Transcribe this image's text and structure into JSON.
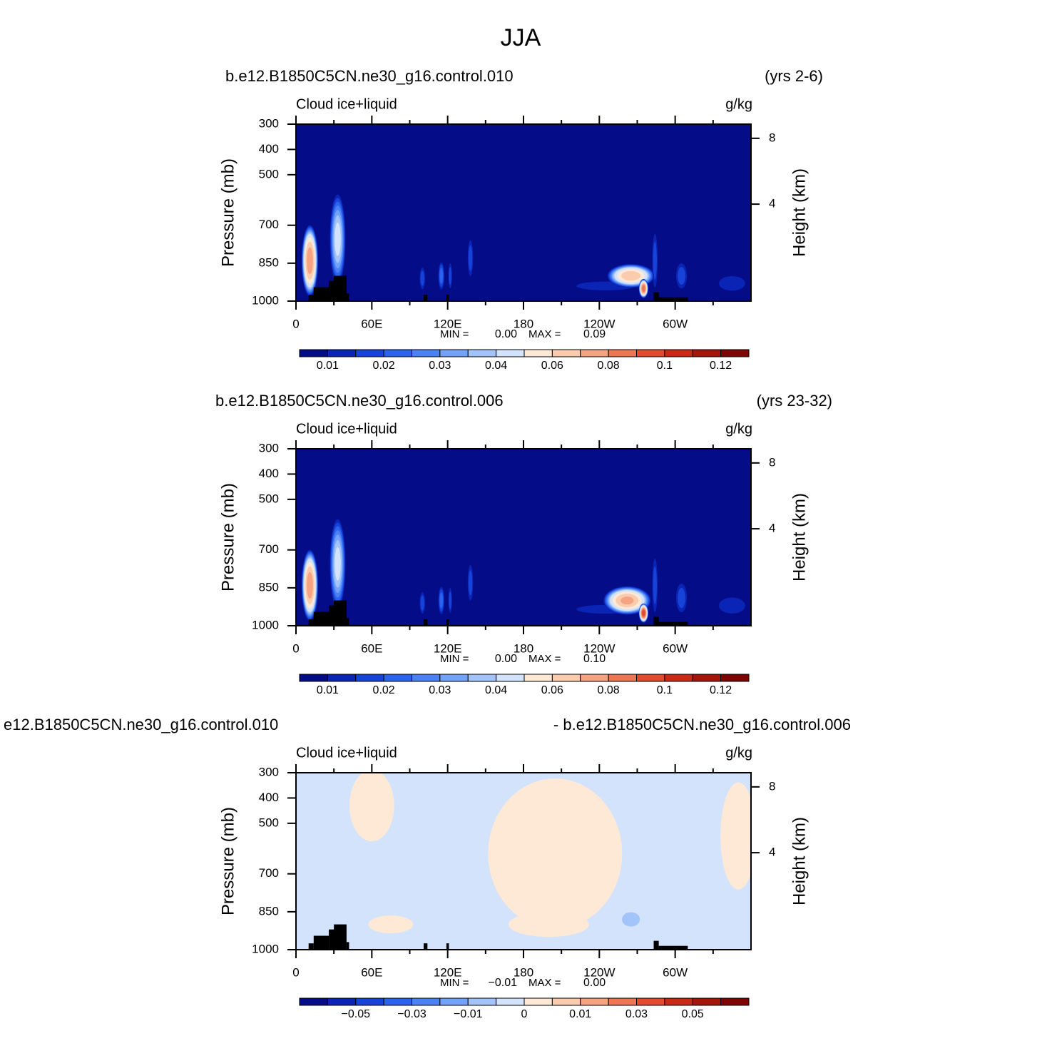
{
  "title": "JJA",
  "chart_data": [
    {
      "type": "contour",
      "left_title": "b.e12.B1850C5CN.ne30_g16.control.010",
      "right_title": "(yrs 2-6)",
      "subtitle_left": "Cloud ice+liquid",
      "subtitle_right": "g/kg",
      "ylabel": "Pressure (mb)",
      "y2label": "Height (km)",
      "xlim": [
        0,
        360
      ],
      "xticks": [
        0,
        {
          "value": 60,
          "label": "60E"
        },
        {
          "value": 120,
          "label": "120E"
        },
        {
          "value": 180,
          "label": "180"
        },
        {
          "value": 240,
          "label": "120W"
        },
        {
          "value": 300,
          "label": "60W"
        }
      ],
      "xminorticks": [
        30,
        90,
        150,
        210,
        270,
        330
      ],
      "ylim": [
        1000,
        300
      ],
      "yticks": [
        300,
        400,
        500,
        700,
        850,
        1000
      ],
      "y2lim": [
        0.11,
        9.16
      ],
      "y2ticks": [
        8,
        4
      ],
      "min_text": "MIN =",
      "min": "0.00",
      "max_text": "MAX =",
      "max": "0.09",
      "colors": [
        "#040C88",
        "#0A25B5",
        "#1843D8",
        "#2B62EE",
        "#4A82F6",
        "#73A2FA",
        "#A3C3FB",
        "#D3E3FC",
        "#FEE9D6",
        "#FBCBAE",
        "#F6A382",
        "#EE7653",
        "#E34B2E",
        "#C92A15",
        "#A51509",
        "#7E0504"
      ],
      "colorbar_ticks": [
        0.01,
        0.02,
        0.03,
        0.04,
        0.06,
        0.08,
        0.1,
        0.12
      ],
      "base": 0,
      "features": [
        {
          "lon": 11,
          "p": 840,
          "value": 0.08,
          "lon_radius": 7,
          "p_radius": 150
        },
        {
          "lon": 33,
          "p": 755,
          "value": 0.045,
          "lon_radius": 7,
          "p_radius": 200
        },
        {
          "lon": 100,
          "p": 910,
          "value": 0.02,
          "lon_radius": 3,
          "p_radius": 60
        },
        {
          "lon": 115,
          "p": 900,
          "value": 0.025,
          "lon_radius": 3,
          "p_radius": 70
        },
        {
          "lon": 122,
          "p": 900,
          "value": 0.02,
          "lon_radius": 2,
          "p_radius": 70
        },
        {
          "lon": 138,
          "p": 830,
          "value": 0.02,
          "lon_radius": 3,
          "p_radius": 100
        },
        {
          "lon": 245,
          "p": 940,
          "value": 0.015,
          "lon_radius": 40,
          "p_radius": 30
        },
        {
          "lon": 265,
          "p": 900,
          "value": 0.07,
          "lon_radius": 20,
          "p_radius": 50
        },
        {
          "lon": 275,
          "p": 950,
          "value": 0.09,
          "lon_radius": 4,
          "p_radius": 40
        },
        {
          "lon": 284,
          "p": 840,
          "value": 0.02,
          "lon_radius": 3,
          "p_radius": 150
        },
        {
          "lon": 305,
          "p": 900,
          "value": 0.02,
          "lon_radius": 6,
          "p_radius": 70
        },
        {
          "lon": 345,
          "p": 930,
          "value": 0.015,
          "lon_radius": 18,
          "p_radius": 50
        }
      ],
      "topography": [
        [
          10,
          14,
          975
        ],
        [
          14,
          26,
          945
        ],
        [
          26,
          31,
          920
        ],
        [
          30,
          40,
          900
        ],
        [
          40,
          42,
          970
        ],
        [
          101,
          104,
          975
        ],
        [
          119,
          121,
          975
        ],
        [
          283,
          287,
          965
        ],
        [
          287,
          310,
          985
        ]
      ]
    },
    {
      "type": "contour",
      "left_title": "b.e12.B1850C5CN.ne30_g16.control.006",
      "right_title": "(yrs 23-32)",
      "subtitle_left": "Cloud ice+liquid",
      "subtitle_right": "g/kg",
      "ylabel": "Pressure (mb)",
      "y2label": "Height (km)",
      "xlim": [
        0,
        360
      ],
      "xticks": [
        0,
        {
          "value": 60,
          "label": "60E"
        },
        {
          "value": 120,
          "label": "120E"
        },
        {
          "value": 180,
          "label": "180"
        },
        {
          "value": 240,
          "label": "120W"
        },
        {
          "value": 300,
          "label": "60W"
        }
      ],
      "xminorticks": [
        30,
        90,
        150,
        210,
        270,
        330
      ],
      "ylim": [
        1000,
        300
      ],
      "yticks": [
        300,
        400,
        500,
        700,
        850,
        1000
      ],
      "y2lim": [
        0.11,
        9.16
      ],
      "y2ticks": [
        8,
        4
      ],
      "min_text": "MIN =",
      "min": "0.00",
      "max_text": "MAX =",
      "max": "0.10",
      "colors": [
        "#040C88",
        "#0A25B5",
        "#1843D8",
        "#2B62EE",
        "#4A82F6",
        "#73A2FA",
        "#A3C3FB",
        "#D3E3FC",
        "#FEE9D6",
        "#FBCBAE",
        "#F6A382",
        "#EE7653",
        "#E34B2E",
        "#C92A15",
        "#A51509",
        "#7E0504"
      ],
      "colorbar_ticks": [
        0.01,
        0.02,
        0.03,
        0.04,
        0.06,
        0.08,
        0.1,
        0.12
      ],
      "base": 0,
      "features": [
        {
          "lon": 11,
          "p": 840,
          "value": 0.08,
          "lon_radius": 7,
          "p_radius": 150
        },
        {
          "lon": 33,
          "p": 755,
          "value": 0.045,
          "lon_radius": 7,
          "p_radius": 200
        },
        {
          "lon": 100,
          "p": 910,
          "value": 0.02,
          "lon_radius": 3,
          "p_radius": 60
        },
        {
          "lon": 115,
          "p": 900,
          "value": 0.025,
          "lon_radius": 3,
          "p_radius": 70
        },
        {
          "lon": 122,
          "p": 900,
          "value": 0.02,
          "lon_radius": 2,
          "p_radius": 70
        },
        {
          "lon": 138,
          "p": 830,
          "value": 0.02,
          "lon_radius": 3,
          "p_radius": 100
        },
        {
          "lon": 245,
          "p": 935,
          "value": 0.015,
          "lon_radius": 40,
          "p_radius": 30
        },
        {
          "lon": 262,
          "p": 900,
          "value": 0.075,
          "lon_radius": 20,
          "p_radius": 60
        },
        {
          "lon": 275,
          "p": 950,
          "value": 0.1,
          "lon_radius": 4,
          "p_radius": 40
        },
        {
          "lon": 284,
          "p": 840,
          "value": 0.02,
          "lon_radius": 3,
          "p_radius": 150
        },
        {
          "lon": 305,
          "p": 890,
          "value": 0.02,
          "lon_radius": 6,
          "p_radius": 80
        },
        {
          "lon": 345,
          "p": 920,
          "value": 0.015,
          "lon_radius": 18,
          "p_radius": 55
        }
      ],
      "topography": [
        [
          10,
          14,
          975
        ],
        [
          14,
          26,
          945
        ],
        [
          26,
          31,
          920
        ],
        [
          30,
          40,
          900
        ],
        [
          40,
          42,
          970
        ],
        [
          101,
          104,
          975
        ],
        [
          119,
          121,
          975
        ],
        [
          283,
          287,
          965
        ],
        [
          287,
          310,
          985
        ]
      ]
    },
    {
      "type": "contour",
      "left_title": "e12.B1850C5CN.ne30_g16.control.010",
      "right_title": "- b.e12.B1850C5CN.ne30_g16.control.006",
      "subtitle_left": "Cloud ice+liquid",
      "subtitle_right": "g/kg",
      "ylabel": "Pressure (mb)",
      "y2label": "Height (km)",
      "xlim": [
        0,
        360
      ],
      "xticks": [
        0,
        {
          "value": 60,
          "label": "60E"
        },
        {
          "value": 120,
          "label": "120E"
        },
        {
          "value": 180,
          "label": "180"
        },
        {
          "value": 240,
          "label": "120W"
        },
        {
          "value": 300,
          "label": "60W"
        }
      ],
      "xminorticks": [
        30,
        90,
        150,
        210,
        270,
        330
      ],
      "ylim": [
        1000,
        300
      ],
      "yticks": [
        300,
        400,
        500,
        700,
        850,
        1000
      ],
      "y2lim": [
        0.11,
        9.16
      ],
      "y2ticks": [
        8,
        4
      ],
      "min_text": "MIN =",
      "min": "−0.01",
      "max_text": "MAX =",
      "max": "0.00",
      "colors": [
        "#040C88",
        "#0A25B5",
        "#1843D8",
        "#2B62EE",
        "#4A82F6",
        "#73A2FA",
        "#A3C3FB",
        "#D3E3FC",
        "#FEE9D6",
        "#FBCBAE",
        "#F6A382",
        "#EE7653",
        "#E34B2E",
        "#C92A15",
        "#A51509",
        "#7E0504"
      ],
      "colorbar_ticks": [
        {
          "value": -0.05,
          "label": "−0.05"
        },
        {
          "value": -0.03,
          "label": "−0.03"
        },
        {
          "value": -0.01,
          "label": "−0.01"
        },
        0,
        0.01,
        0.03,
        0.05
      ],
      "base": -0.002,
      "features": [
        {
          "lon": 205,
          "p": 620,
          "value": 0.002,
          "lon_radius": 75,
          "p_radius": 420
        },
        {
          "lon": 60,
          "p": 430,
          "value": 0.002,
          "lon_radius": 25,
          "p_radius": 200
        },
        {
          "lon": 350,
          "p": 550,
          "value": 0.002,
          "lon_radius": 20,
          "p_radius": 300
        },
        {
          "lon": 75,
          "p": 900,
          "value": 0.002,
          "lon_radius": 25,
          "p_radius": 50
        },
        {
          "lon": 200,
          "p": 900,
          "value": 0.002,
          "lon_radius": 45,
          "p_radius": 70
        },
        {
          "lon": 265,
          "p": 880,
          "value": -0.008,
          "lon_radius": 10,
          "p_radius": 40
        },
        {
          "lon": 5,
          "p": 880,
          "value": -0.004,
          "lon_radius": 4,
          "p_radius": 60
        },
        {
          "lon": 33,
          "p": 740,
          "value": -0.003,
          "lon_radius": 2,
          "p_radius": 50
        }
      ],
      "topography": [
        [
          10,
          14,
          975
        ],
        [
          14,
          26,
          945
        ],
        [
          26,
          31,
          920
        ],
        [
          30,
          40,
          900
        ],
        [
          40,
          42,
          970
        ],
        [
          101,
          104,
          975
        ],
        [
          119,
          121,
          975
        ],
        [
          283,
          287,
          965
        ],
        [
          287,
          310,
          985
        ]
      ]
    }
  ]
}
